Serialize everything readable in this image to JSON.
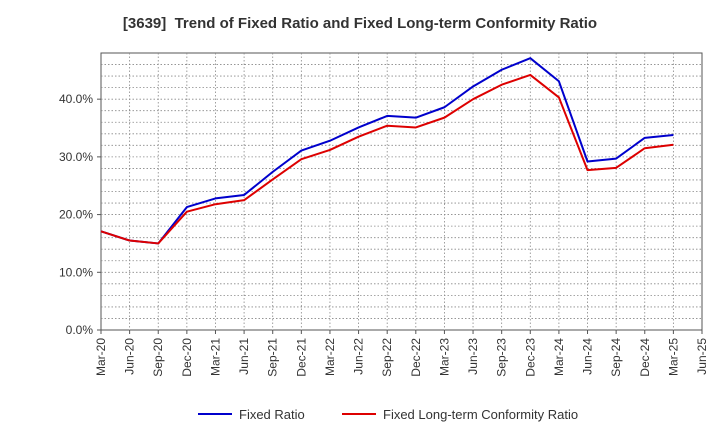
{
  "chart_data": {
    "type": "line",
    "title": "[3639]  Trend of Fixed Ratio and Fixed Long-term Conformity Ratio",
    "x_ticks": [
      "Mar-20",
      "Jun-20",
      "Sep-20",
      "Dec-20",
      "Mar-21",
      "Jun-21",
      "Sep-21",
      "Dec-21",
      "Mar-22",
      "Jun-22",
      "Sep-22",
      "Dec-22",
      "Mar-23",
      "Jun-23",
      "Sep-23",
      "Dec-23",
      "Mar-24",
      "Jun-24",
      "Sep-24",
      "Dec-24",
      "Mar-25",
      "Jun-25"
    ],
    "x": [
      "Mar-20",
      "Jun-20",
      "Sep-20",
      "Dec-20",
      "Mar-21",
      "Jun-21",
      "Sep-21",
      "Dec-21",
      "Mar-22",
      "Jun-22",
      "Sep-22",
      "Dec-22",
      "Mar-23",
      "Jun-23",
      "Sep-23",
      "Dec-23",
      "Mar-24",
      "Jun-24",
      "Sep-24",
      "Dec-24",
      "Mar-25"
    ],
    "y_ticks": [
      "0.0%",
      "10.0%",
      "20.0%",
      "30.0%",
      "40.0%"
    ],
    "ylim": [
      0,
      48
    ],
    "grid": true,
    "legend_position": "bottom",
    "series": [
      {
        "name": "Fixed Ratio",
        "color": "#0000cc",
        "values": [
          17.1,
          15.5,
          15.0,
          21.3,
          22.8,
          23.4,
          27.4,
          31.1,
          32.8,
          35.1,
          37.1,
          36.8,
          38.6,
          42.2,
          45.1,
          47.1,
          43.1,
          29.2,
          29.7,
          33.3,
          33.8
        ]
      },
      {
        "name": "Fixed Long-term Conformity Ratio",
        "color": "#dd0000",
        "values": [
          17.1,
          15.5,
          15.0,
          20.5,
          21.8,
          22.5,
          26.1,
          29.6,
          31.2,
          33.5,
          35.4,
          35.1,
          36.8,
          40.0,
          42.5,
          44.2,
          40.3,
          27.7,
          28.1,
          31.5,
          32.1
        ]
      }
    ]
  }
}
